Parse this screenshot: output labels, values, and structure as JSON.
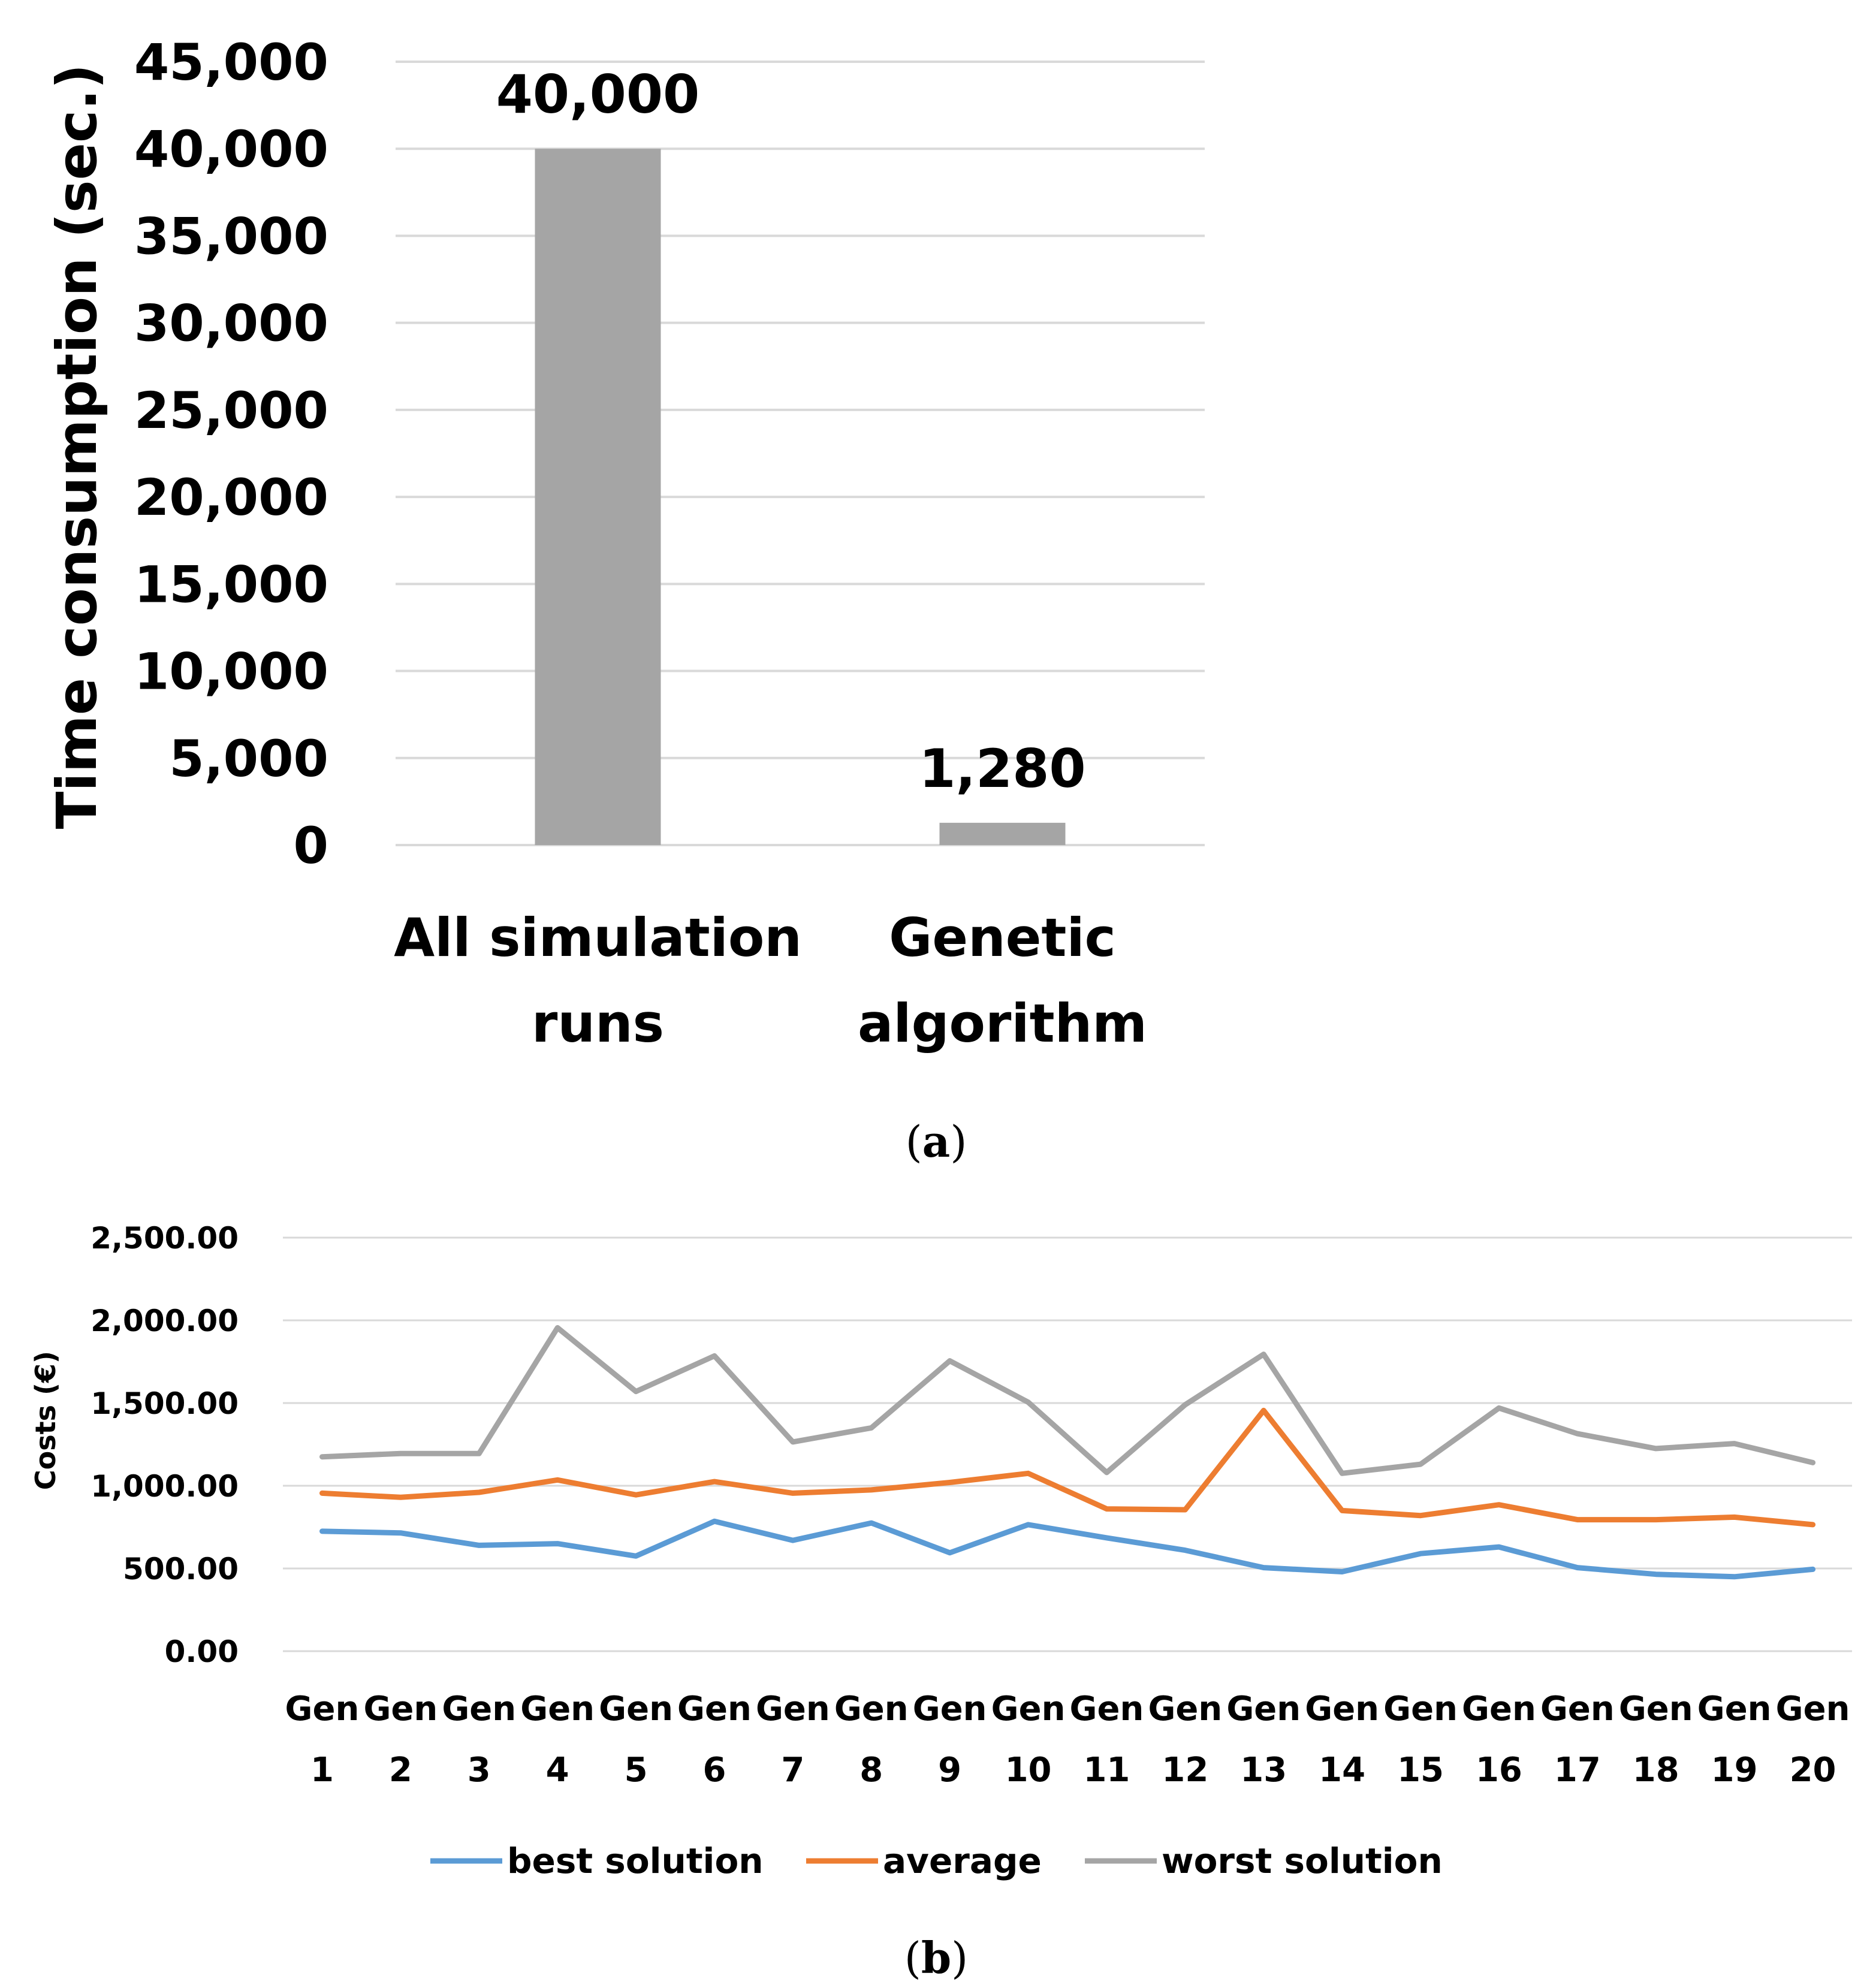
{
  "chart_data": [
    {
      "panel": "(a)",
      "type": "bar",
      "title": "",
      "xlabel": "",
      "ylabel": "Time  consumption (sec.)",
      "categories": [
        [
          "All simulation",
          "runs"
        ],
        [
          "Genetic",
          "algorithm"
        ]
      ],
      "values": [
        40000,
        1280
      ],
      "data_labels": [
        "40,000",
        "1,280"
      ],
      "ylim": [
        0,
        45000
      ],
      "yticks": [
        0,
        5000,
        10000,
        15000,
        20000,
        25000,
        30000,
        35000,
        40000,
        45000
      ],
      "ytick_labels": [
        "0",
        "5,000",
        "10,000",
        "15,000",
        "20,000",
        "25,000",
        "30,000",
        "35,000",
        "40,000",
        "45,000"
      ],
      "grid": true,
      "bar_color": "#a5a5a5"
    },
    {
      "panel": "(b)",
      "type": "line",
      "title": "",
      "xlabel": "",
      "ylabel": "Costs (€)",
      "categories": [
        [
          "Gen",
          "1"
        ],
        [
          "Gen",
          "2"
        ],
        [
          "Gen",
          "3"
        ],
        [
          "Gen",
          "4"
        ],
        [
          "Gen",
          "5"
        ],
        [
          "Gen",
          "6"
        ],
        [
          "Gen",
          "7"
        ],
        [
          "Gen",
          "8"
        ],
        [
          "Gen",
          "9"
        ],
        [
          "Gen",
          "10"
        ],
        [
          "Gen",
          "11"
        ],
        [
          "Gen",
          "12"
        ],
        [
          "Gen",
          "13"
        ],
        [
          "Gen",
          "14"
        ],
        [
          "Gen",
          "15"
        ],
        [
          "Gen",
          "16"
        ],
        [
          "Gen",
          "17"
        ],
        [
          "Gen",
          "18"
        ],
        [
          "Gen",
          "19"
        ],
        [
          "Gen",
          "20"
        ]
      ],
      "series": [
        {
          "name": "best solution",
          "color": "#5b9bd5",
          "values": [
            725,
            715,
            640,
            650,
            575,
            785,
            670,
            775,
            595,
            765,
            685,
            610,
            505,
            480,
            590,
            630,
            505,
            465,
            450,
            495
          ]
        },
        {
          "name": "average",
          "color": "#ed7d31",
          "values": [
            955,
            930,
            960,
            1035,
            945,
            1025,
            955,
            975,
            1020,
            1075,
            860,
            855,
            1455,
            850,
            820,
            885,
            795,
            795,
            810,
            765
          ]
        },
        {
          "name": "worst solution",
          "color": "#a5a5a5",
          "values": [
            1175,
            1195,
            1195,
            1955,
            1570,
            1785,
            1265,
            1350,
            1755,
            1505,
            1080,
            1490,
            1795,
            1075,
            1130,
            1470,
            1315,
            1225,
            1255,
            1140
          ]
        }
      ],
      "ylim": [
        0,
        2500
      ],
      "yticks": [
        0,
        500,
        1000,
        1500,
        2000,
        2500
      ],
      "ytick_labels": [
        "0.00",
        "500.00",
        "1,000.00",
        "1,500.00",
        "2,000.00",
        "2,500.00"
      ],
      "grid": true,
      "legend_position": "bottom"
    }
  ],
  "captions": {
    "a": "a",
    "b": "b"
  }
}
